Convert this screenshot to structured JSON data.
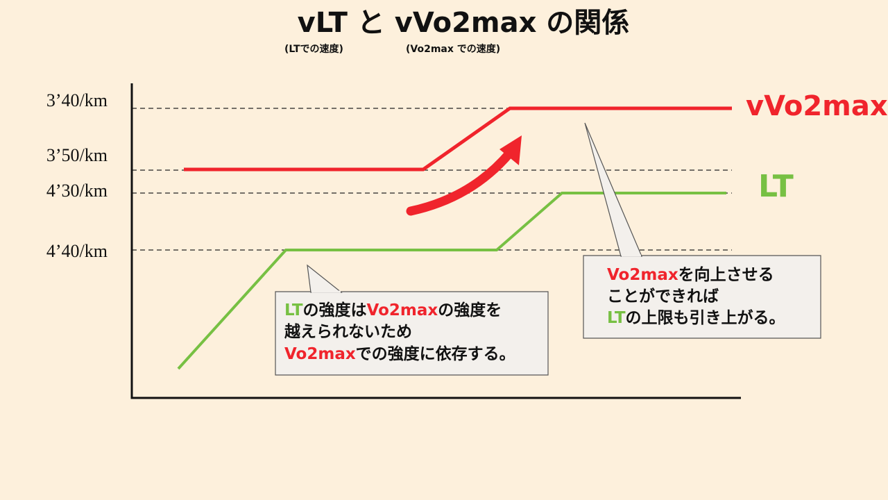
{
  "header": {
    "title": "vLT と vVo2max の関係",
    "sublabels": [
      "(LTでの速度)",
      "(Vo2max での速度)"
    ]
  },
  "y_labels": [
    "3’40/km",
    "3’50/km",
    "4’30/km",
    "4’40/km"
  ],
  "lines": [
    {
      "label": "vVo2max",
      "color": "#f0242c"
    },
    {
      "label": "LT",
      "color": "#77c043"
    }
  ],
  "callouts": [
    {
      "lines": [
        [
          {
            "text": "LT",
            "color": "#77c043"
          },
          {
            "text": "の強度は",
            "color": "#111111"
          },
          {
            "text": "Vo2max",
            "color": "#f0242c"
          },
          {
            "text": "の強度を",
            "color": "#111111"
          }
        ],
        [
          {
            "text": "越えられないため",
            "color": "#111111"
          }
        ],
        [
          {
            "text": "Vo2max",
            "color": "#f0242c"
          },
          {
            "text": "での強度に依存する。",
            "color": "#111111"
          }
        ]
      ]
    },
    {
      "lines": [
        [
          {
            "text": "Vo2max",
            "color": "#f0242c"
          },
          {
            "text": "を向上させる",
            "color": "#111111"
          }
        ],
        [
          {
            "text": "ことができれば",
            "color": "#111111"
          }
        ],
        [
          {
            "text": "LT",
            "color": "#77c043"
          },
          {
            "text": "の上限も引き上がる。",
            "color": "#111111"
          }
        ]
      ]
    }
  ]
}
